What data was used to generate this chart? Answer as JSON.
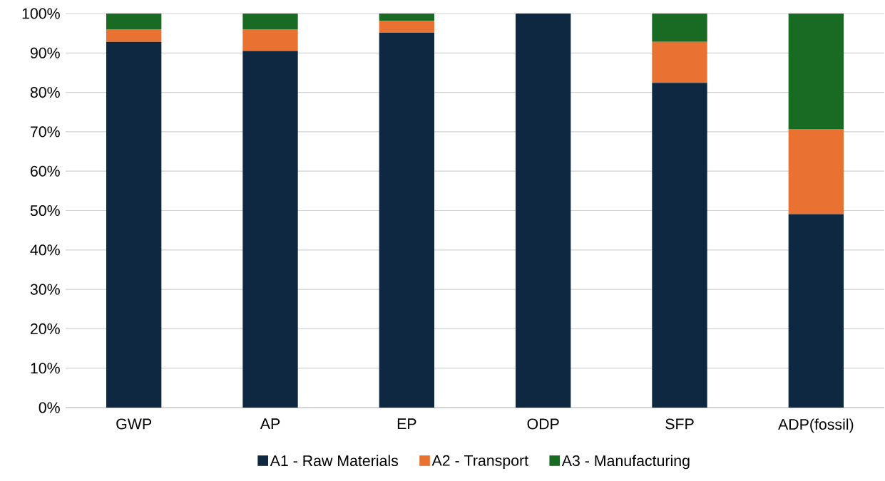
{
  "chart_data": {
    "type": "bar",
    "stacked": true,
    "categories": [
      "GWP",
      "AP",
      "EP",
      "ODP",
      "SFP",
      "ADP(fossil)"
    ],
    "series": [
      {
        "name": "A1 - Raw Materials",
        "color": "#0f2841",
        "values": [
          92.8,
          90.5,
          95.1,
          100,
          82.4,
          49.1
        ]
      },
      {
        "name": "A2 - Transport",
        "color": "#e97132",
        "values": [
          3.2,
          5.5,
          3.0,
          0,
          10.4,
          21.6
        ]
      },
      {
        "name": "A3 - Manufacturing",
        "color": "#196b24",
        "values": [
          4.0,
          4.0,
          1.9,
          0,
          7.2,
          29.3
        ]
      }
    ],
    "ylim": [
      0,
      100
    ],
    "yticks": [
      {
        "value": 0,
        "label": "0%"
      },
      {
        "value": 10,
        "label": "10%"
      },
      {
        "value": 20,
        "label": "20%"
      },
      {
        "value": 30,
        "label": "30%"
      },
      {
        "value": 40,
        "label": "40%"
      },
      {
        "value": 50,
        "label": "50%"
      },
      {
        "value": 60,
        "label": "60%"
      },
      {
        "value": 70,
        "label": "70%"
      },
      {
        "value": 80,
        "label": "80%"
      },
      {
        "value": 90,
        "label": "90%"
      },
      {
        "value": 100,
        "label": "100%"
      }
    ],
    "grid": "y",
    "legend": "bottom"
  }
}
